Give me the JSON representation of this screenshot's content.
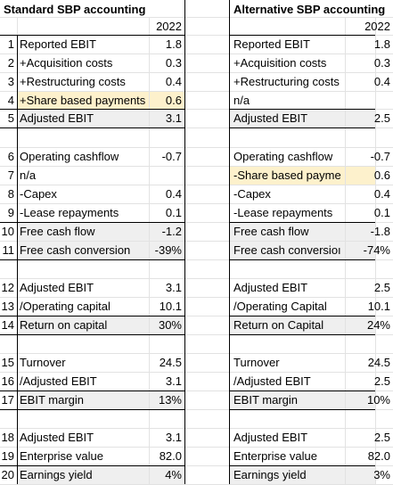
{
  "left": {
    "title": "Standard SBP accounting",
    "year": "2022",
    "rows": [
      {
        "n": "1",
        "label": "Reported EBIT",
        "value": "1.8"
      },
      {
        "n": "2",
        "label": "+Acquisition costs",
        "value": "0.3"
      },
      {
        "n": "3",
        "label": "+Restructuring costs",
        "value": "0.4"
      },
      {
        "n": "4",
        "label": "+Share based payments",
        "value": "0.6"
      },
      {
        "n": "5",
        "label": "Adjusted EBIT",
        "value": "3.1"
      },
      {
        "n": "6",
        "label": "Operating cashflow",
        "value": "-0.7"
      },
      {
        "n": "7",
        "label": "n/a",
        "value": ""
      },
      {
        "n": "8",
        "label": "-Capex",
        "value": "0.4"
      },
      {
        "n": "9",
        "label": "-Lease repayments",
        "value": "0.1"
      },
      {
        "n": "10",
        "label": "Free cash flow",
        "value": "-1.2"
      },
      {
        "n": "11",
        "label": "Free cash conversion",
        "value": "-39%"
      },
      {
        "n": "12",
        "label": "Adjusted EBIT",
        "value": "3.1"
      },
      {
        "n": "13",
        "label": "/Operating capital",
        "value": "10.1"
      },
      {
        "n": "14",
        "label": "Return on capital",
        "value": "30%"
      },
      {
        "n": "15",
        "label": "Turnover",
        "value": "24.5"
      },
      {
        "n": "16",
        "label": "/Adjusted EBIT",
        "value": "3.1"
      },
      {
        "n": "17",
        "label": "EBIT margin",
        "value": "13%"
      },
      {
        "n": "18",
        "label": "Adjusted EBIT",
        "value": "3.1"
      },
      {
        "n": "19",
        "label": "Enterprise value",
        "value": "82.0"
      },
      {
        "n": "20",
        "label": "Earnings yield",
        "value": "4%"
      }
    ]
  },
  "right": {
    "title": "Alternative SBP accounting",
    "year": "2022",
    "rows": [
      {
        "label": "Reported EBIT",
        "value": "1.8"
      },
      {
        "label": "+Acquisition costs",
        "value": "0.3"
      },
      {
        "label": "+Restructuring costs",
        "value": "0.4"
      },
      {
        "label": "n/a",
        "value": ""
      },
      {
        "label": "Adjusted EBIT",
        "value": "2.5"
      },
      {
        "label": "Operating cashflow",
        "value": "-0.7"
      },
      {
        "label": "-Share based payme",
        "value": "0.6"
      },
      {
        "label": "-Capex",
        "value": "0.4"
      },
      {
        "label": "-Lease repayments",
        "value": "0.1"
      },
      {
        "label": "Free cash flow",
        "value": "-1.8"
      },
      {
        "label": "Free cash conversioı",
        "value": "-74%"
      },
      {
        "label": "Adjusted EBIT",
        "value": "2.5"
      },
      {
        "label": "/Operating Capital",
        "value": "10.1"
      },
      {
        "label": "Return on Capital",
        "value": "24%"
      },
      {
        "label": "Turnover",
        "value": "24.5"
      },
      {
        "label": "/Adjusted EBIT",
        "value": "2.5"
      },
      {
        "label": "EBIT margin",
        "value": "10%"
      },
      {
        "label": "Adjusted EBIT",
        "value": "2.5"
      },
      {
        "label": "Enterprise value",
        "value": "82.0"
      },
      {
        "label": "Earnings yield",
        "value": "3%"
      }
    ]
  },
  "colors": {
    "highlight": "#fdf1cc",
    "shaded": "#efefef",
    "grid": "#e2e2e2"
  }
}
